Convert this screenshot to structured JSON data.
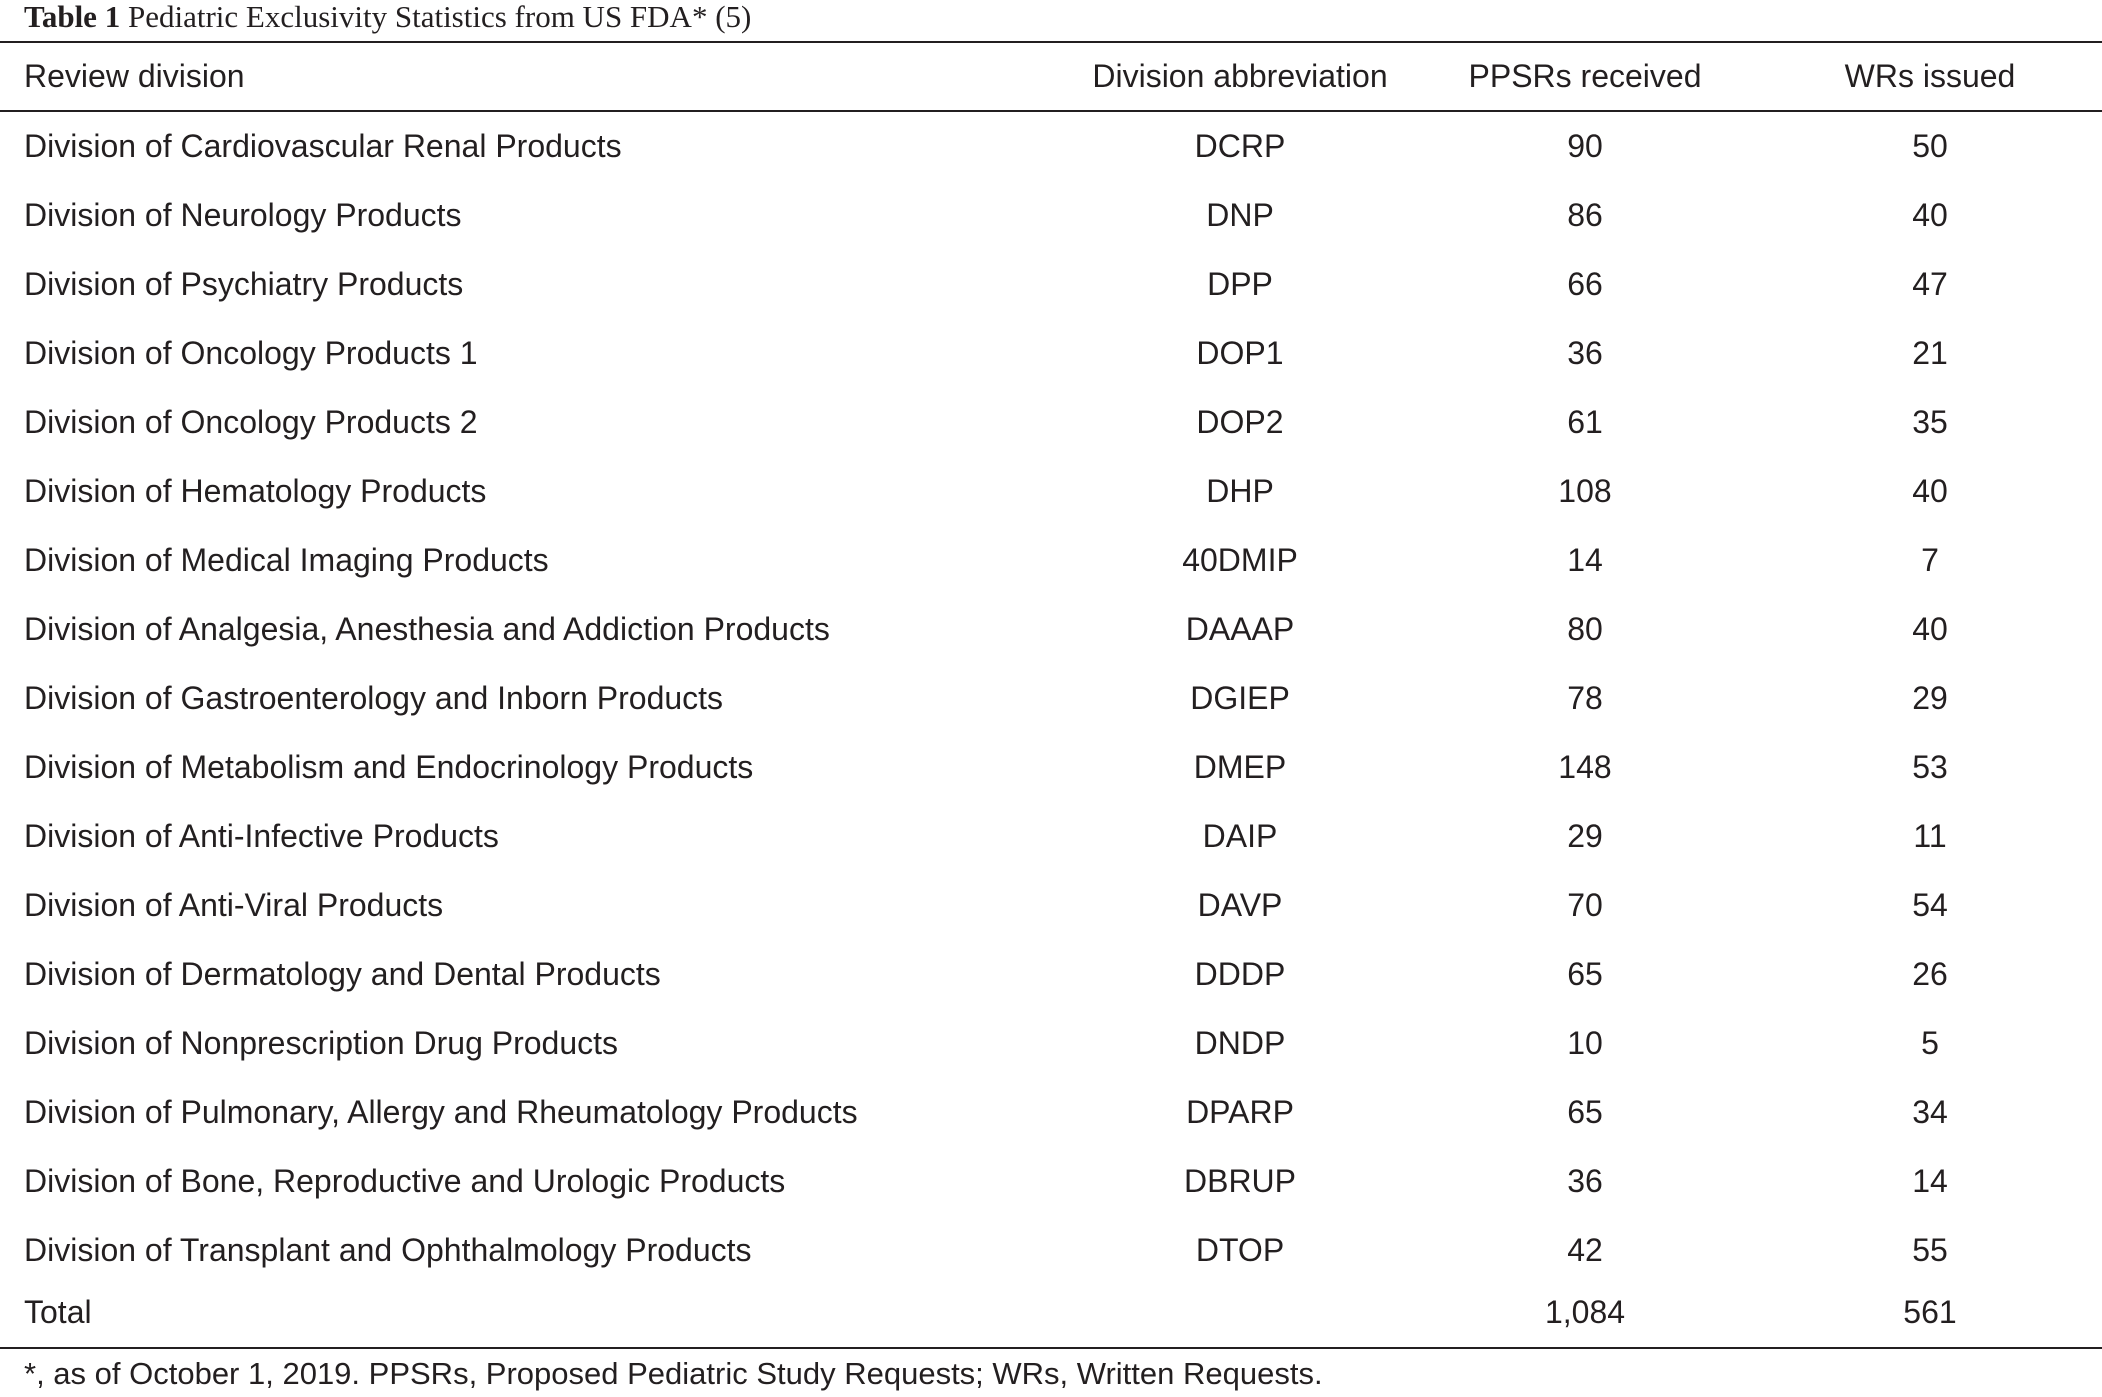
{
  "caption": {
    "label": "Table 1",
    "title": "Pediatric Exclusivity Statistics from US FDA* (5)"
  },
  "headers": {
    "division": "Review division",
    "abbreviation": "Division abbreviation",
    "ppsrs": "PPSRs received",
    "wrs": "WRs issued"
  },
  "rows": [
    {
      "division": "Division of Cardiovascular Renal Products",
      "abbreviation": "DCRP",
      "ppsrs": "90",
      "wrs": "50"
    },
    {
      "division": "Division of Neurology Products",
      "abbreviation": "DNP",
      "ppsrs": "86",
      "wrs": "40"
    },
    {
      "division": "Division of Psychiatry Products",
      "abbreviation": "DPP",
      "ppsrs": "66",
      "wrs": "47"
    },
    {
      "division": "Division of Oncology Products 1",
      "abbreviation": "DOP1",
      "ppsrs": "36",
      "wrs": "21"
    },
    {
      "division": "Division of Oncology Products 2",
      "abbreviation": "DOP2",
      "ppsrs": "61",
      "wrs": "35"
    },
    {
      "division": "Division of Hematology Products",
      "abbreviation": "DHP",
      "ppsrs": "108",
      "wrs": "40"
    },
    {
      "division": "Division of Medical Imaging Products",
      "abbreviation": "40DMIP",
      "ppsrs": "14",
      "wrs": "7"
    },
    {
      "division": "Division of Analgesia, Anesthesia and Addiction Products",
      "abbreviation": "DAAAP",
      "ppsrs": "80",
      "wrs": "40"
    },
    {
      "division": "Division of Gastroenterology and Inborn Products",
      "abbreviation": "DGIEP",
      "ppsrs": "78",
      "wrs": "29"
    },
    {
      "division": "Division of Metabolism and Endocrinology Products",
      "abbreviation": "DMEP",
      "ppsrs": "148",
      "wrs": "53"
    },
    {
      "division": "Division of Anti-Infective Products",
      "abbreviation": "DAIP",
      "ppsrs": "29",
      "wrs": "11"
    },
    {
      "division": "Division of Anti-Viral Products",
      "abbreviation": "DAVP",
      "ppsrs": "70",
      "wrs": "54"
    },
    {
      "division": "Division of Dermatology and Dental Products",
      "abbreviation": "DDDP",
      "ppsrs": "65",
      "wrs": "26"
    },
    {
      "division": "Division of Nonprescription Drug Products",
      "abbreviation": "DNDP",
      "ppsrs": "10",
      "wrs": "5"
    },
    {
      "division": "Division of Pulmonary, Allergy and Rheumatology Products",
      "abbreviation": "DPARP",
      "ppsrs": "65",
      "wrs": "34"
    },
    {
      "division": "Division of Bone, Reproductive and Urologic Products",
      "abbreviation": "DBRUP",
      "ppsrs": "36",
      "wrs": "14"
    },
    {
      "division": "Division of Transplant and Ophthalmology Products",
      "abbreviation": "DTOP",
      "ppsrs": "42",
      "wrs": "55"
    }
  ],
  "total": {
    "division": "Total",
    "abbreviation": "",
    "ppsrs": "1,084",
    "wrs": "561"
  },
  "footnote": "*, as of October 1, 2019. PPSRs, Proposed Pediatric Study Requests; WRs, Written Requests."
}
